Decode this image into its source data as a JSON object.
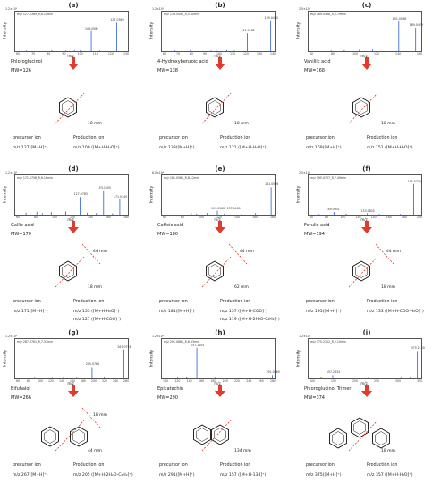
{
  "panels": [
    {
      "label": "(a)",
      "header": "m/z 127.0389_R,6.10min",
      "ymax": "1.2×10⁵",
      "xaxis": "m/z",
      "yaxis": "Intensity",
      "ticks": [
        "60",
        "70",
        "80",
        "90",
        "100",
        "110",
        "120",
        "130"
      ],
      "peaks": [
        {
          "label": "109.0584"
        },
        {
          "label": "127.0389"
        }
      ],
      "compound": "Phloroglucinol",
      "mw": "MW=126",
      "annotation": "18 mm",
      "precursor_header": "precursor ion",
      "production_header": "Production ion",
      "precursor": "m/z 127([M+H]⁺)",
      "products": [
        "m/z 109 ([M+H-H₂O]⁺)"
      ]
    },
    {
      "label": "(b)",
      "header": "m/z 139.0490_R,5.80min",
      "ymax": "1.2×10⁵",
      "xaxis": "m/z",
      "yaxis": "Intensity",
      "ticks": [
        "60",
        "70",
        "80",
        "90",
        "100",
        "110",
        "120",
        "130",
        "140"
      ],
      "peaks": [
        {
          "label": "121.0282"
        },
        {
          "label": "139.0490"
        }
      ],
      "compound": "4-Hydroxybenzoic acid",
      "mw": "MW=138",
      "annotation": "18 mm",
      "precursor_header": "precursor ion",
      "production_header": "Production ion",
      "precursor": "m/z 139([M+H]⁺)",
      "products": [
        "m/z 121 ([M+H-H₂O]⁺)"
      ]
    },
    {
      "label": "(c)",
      "header": "m/z 169.0498_R,5.79min",
      "ymax": "2.5×10⁴",
      "xaxis": "m/z",
      "yaxis": "Intensity",
      "ticks": [
        "60",
        "80",
        "100",
        "120",
        "140",
        "160"
      ],
      "peaks": [
        {
          "label": "151.0088"
        },
        {
          "label": "169.0479"
        }
      ],
      "compound": "Vanillic acid",
      "mw": "MW=168",
      "annotation": "18 mm",
      "precursor_header": "precursor ion",
      "production_header": "Production ion",
      "precursor": "m/z 169([M+H]⁺)",
      "products": [
        "m/z 151 ([M+H-H₂O]⁺)"
      ]
    },
    {
      "label": "(d)",
      "header": "m/z 171.0758_R,6.16min",
      "ymax": "1.2×10⁵",
      "xaxis": "m/z",
      "yaxis": "Intensity",
      "ticks": [
        "60",
        "80",
        "100",
        "120",
        "140",
        "160",
        "180"
      ],
      "peaks": [
        {
          "label": "127.0783"
        },
        {
          "label": "153.1005"
        },
        {
          "label": "171.0745"
        }
      ],
      "compound": "Gallic acid",
      "mw": "MW=170",
      "annotation": "18 mm",
      "annotation2": "44 mm",
      "precursor_header": "precursor ion",
      "production_header": "Production ion",
      "precursor": "m/z 171([M+H]⁺)",
      "products": [
        "m/z 153 ([M+H-H₂O]⁺)",
        "m/z 127 ([M+H-COO]⁺)"
      ]
    },
    {
      "label": "(e)",
      "header": "m/z 181.0581_R,8.12min",
      "ymax": "8.0×10⁴",
      "xaxis": "m/z",
      "yaxis": "Intensity",
      "ticks": [
        "60",
        "80",
        "100",
        "120",
        "140",
        "160",
        "180"
      ],
      "peaks": [
        {
          "label": "119.0582"
        },
        {
          "label": "137.0460"
        },
        {
          "label": "181.0596"
        }
      ],
      "compound": "Caffeic acid",
      "mw": "MW=180",
      "annotation": "62 mm",
      "annotation2": "44 mm",
      "precursor_header": "precursor ion",
      "production_header": "Production ion",
      "precursor": "m/z 181([M+H]⁺)",
      "products": [
        "m/z 137 ([M+H-COO]⁺)",
        "m/z 119 ([M+H-2H₂O-C₂H₂]⁺)"
      ]
    },
    {
      "label": "(f)",
      "header": "m/z 195.0757_R,7.49min",
      "ymax": "2.5×10⁴",
      "xaxis": "m/z",
      "yaxis": "Intensity",
      "ticks": [
        "60",
        "80",
        "100",
        "120",
        "140",
        "160",
        "180",
        "200"
      ],
      "peaks": [
        {
          "label": "89.0001"
        },
        {
          "label": "133.0805"
        },
        {
          "label": "195.0738"
        }
      ],
      "compound": "Ferulic acid",
      "mw": "MW=194",
      "annotation": "18 mm",
      "annotation2": "44 mm",
      "precursor_header": "precursor ion",
      "production_header": "Production ion",
      "precursor": "m/z 195([M+H]⁺)",
      "products": [
        "m/z 133 ([M+H-COO-H₂O]⁺)"
      ]
    },
    {
      "label": "(g)",
      "header": "m/z 267.0761_R,7.37min",
      "ymax": "1.2×10⁵",
      "xaxis": "m/z",
      "yaxis": "Intensity",
      "ticks": [
        "60",
        "80",
        "100",
        "120",
        "140",
        "160",
        "180",
        "200",
        "220",
        "240",
        "260"
      ],
      "peaks": [
        {
          "label": "205.0765"
        },
        {
          "label": "267.0756"
        }
      ],
      "compound": "Bifuhalol",
      "mw": "MW=266",
      "annotation": "44 mm",
      "annotation2": "18 mm",
      "precursor_header": "precursor ion",
      "production_header": "Production ion",
      "precursor": "m/z 267([M+H]⁺)",
      "products": [
        "m/z 205 ([M+H-2H₂O-C₂H₂]⁺)"
      ]
    },
    {
      "label": "(h)",
      "header": "m/z 291.0861_R,6.93min",
      "ymax": "1.2×10⁵",
      "xaxis": "m/z",
      "yaxis": "Intensity",
      "ticks": [
        "100",
        "120",
        "140",
        "160",
        "180",
        "200",
        "220",
        "240",
        "260",
        "280"
      ],
      "peaks": [
        {
          "label": "157.1105"
        },
        {
          "label": "291.0869"
        }
      ],
      "compound": "Epicatechin",
      "mw": "MW=290",
      "annotation": "134 mm",
      "precursor_header": "precursor ion",
      "production_header": "Production ion",
      "precursor": "m/z 291([M+H]⁺)",
      "products": [
        "m/z 157 ([M+H-134]⁺)"
      ]
    },
    {
      "label": "(i)",
      "header": "m/z 375.2152_R,2.10min",
      "ymax": "1.2×10⁵",
      "xaxis": "m/z",
      "yaxis": "Intensity",
      "ticks": [
        "100",
        "150",
        "200",
        "250",
        "300",
        "350"
      ],
      "peaks": [
        {
          "label": "157.2434"
        },
        {
          "label": "375.2130"
        }
      ],
      "compound": "Phloroglucinol Trimer",
      "mw": "MW=374",
      "annotation": "18 mm",
      "precursor_header": "precursor ion",
      "production_header": "Production ion",
      "precursor": "m/z 375([M+H]⁺)",
      "products": [
        "m/z 357 ([M+H-H₂O]⁺)"
      ]
    }
  ],
  "spectra": [
    {
      "xmin": 55,
      "xmax": 135,
      "peaks": [
        [
          109,
          0.62
        ],
        [
          127,
          0.88
        ],
        [
          63,
          0.02
        ],
        [
          81,
          0.03
        ],
        [
          91,
          0.02
        ],
        [
          97,
          0.03
        ],
        [
          101,
          0.02
        ],
        [
          115,
          0.02
        ]
      ]
    },
    {
      "xmin": 55,
      "xmax": 142,
      "peaks": [
        [
          121,
          0.55
        ],
        [
          139,
          0.95
        ],
        [
          65,
          0.02
        ],
        [
          77,
          0.03
        ],
        [
          93,
          0.02
        ],
        [
          97,
          0.04
        ],
        [
          105,
          0.03
        ],
        [
          111,
          0.02
        ]
      ]
    },
    {
      "xmin": 55,
      "xmax": 175,
      "peaks": [
        [
          151,
          0.92
        ],
        [
          169,
          0.72
        ],
        [
          123,
          0.05
        ],
        [
          109,
          0.04
        ],
        [
          93,
          0.03
        ],
        [
          79,
          0.02
        ]
      ]
    },
    {
      "xmin": 55,
      "xmax": 180,
      "peaks": [
        [
          127,
          0.55
        ],
        [
          153,
          0.75
        ],
        [
          171,
          0.48
        ],
        [
          67,
          0.06
        ],
        [
          79,
          0.09
        ],
        [
          85,
          0.05
        ],
        [
          95,
          0.08
        ],
        [
          109,
          0.18
        ],
        [
          111,
          0.1
        ],
        [
          135,
          0.06
        ],
        [
          145,
          0.05
        ],
        [
          163,
          0.04
        ]
      ]
    },
    {
      "xmin": 55,
      "xmax": 185,
      "peaks": [
        [
          119,
          0.12
        ],
        [
          137,
          0.1
        ],
        [
          181,
          0.85
        ],
        [
          89,
          0.04
        ],
        [
          95,
          0.03
        ],
        [
          107,
          0.05
        ],
        [
          127,
          0.03
        ],
        [
          147,
          0.03
        ],
        [
          163,
          0.05
        ]
      ]
    },
    {
      "xmin": 55,
      "xmax": 205,
      "peaks": [
        [
          89,
          0.08
        ],
        [
          133,
          0.04
        ],
        [
          195,
          0.95
        ],
        [
          69,
          0.02
        ],
        [
          105,
          0.03
        ],
        [
          149,
          0.02
        ],
        [
          177,
          0.02
        ]
      ]
    },
    {
      "xmin": 55,
      "xmax": 275,
      "peaks": [
        [
          205,
          0.35
        ],
        [
          267,
          0.9
        ],
        [
          93,
          0.02
        ],
        [
          127,
          0.02
        ],
        [
          149,
          0.02
        ],
        [
          175,
          0.02
        ],
        [
          229,
          0.03
        ]
      ]
    },
    {
      "xmin": 95,
      "xmax": 295,
      "peaks": [
        [
          157,
          0.95
        ],
        [
          291,
          0.1
        ],
        [
          123,
          0.03
        ],
        [
          139,
          0.04
        ],
        [
          189,
          0.02
        ],
        [
          207,
          0.02
        ]
      ]
    },
    {
      "xmin": 95,
      "xmax": 385,
      "peaks": [
        [
          157,
          0.1
        ],
        [
          375,
          0.85
        ],
        [
          127,
          0.03
        ],
        [
          207,
          0.02
        ],
        [
          249,
          0.02
        ],
        [
          333,
          0.02
        ],
        [
          357,
          0.05
        ]
      ]
    }
  ]
}
